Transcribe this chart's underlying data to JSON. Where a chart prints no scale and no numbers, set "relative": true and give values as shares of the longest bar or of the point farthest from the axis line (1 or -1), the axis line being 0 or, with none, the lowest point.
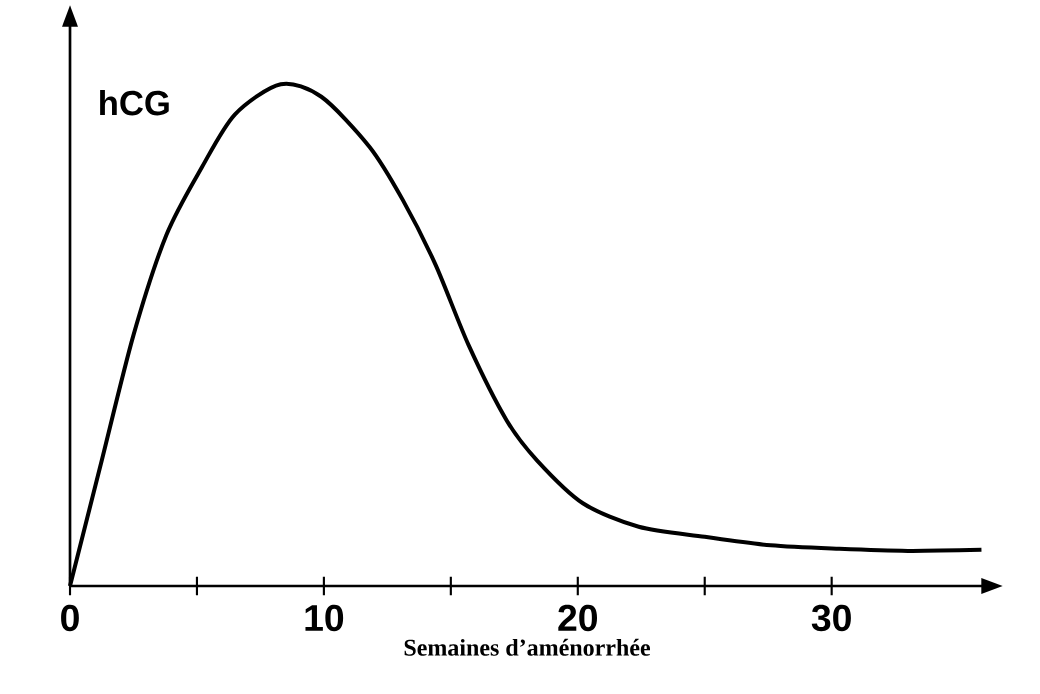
{
  "chart_data": {
    "type": "line",
    "ylabel": "hCG",
    "xlabel": "Semaines d’aménorrhée",
    "relative": true,
    "xlim": [
      0,
      36
    ],
    "xticks": [
      0,
      {
        "value": 5,
        "label": null
      },
      10,
      {
        "value": 15,
        "label": null
      },
      20,
      {
        "value": 25,
        "label": null
      },
      30
    ],
    "x": [
      0,
      1.2,
      2.5,
      3.8,
      5.2,
      6.5,
      8.3,
      9.9,
      11.8,
      13.1,
      14.4,
      15.7,
      17.2,
      18.4,
      20.2,
      22.4,
      25,
      27.6,
      30.3,
      33,
      35.9
    ],
    "series": [
      {
        "color": "#000000",
        "values": [
          0,
          0.24,
          0.5,
          0.7,
          0.835,
          0.94,
          1,
          0.975,
          0.875,
          0.77,
          0.64,
          0.48,
          0.33,
          0.25,
          0.165,
          0.118,
          0.098,
          0.081,
          0.074,
          0.07,
          0.072
        ]
      }
    ],
    "grid": false,
    "marker": "none",
    "line_style": "solid"
  }
}
